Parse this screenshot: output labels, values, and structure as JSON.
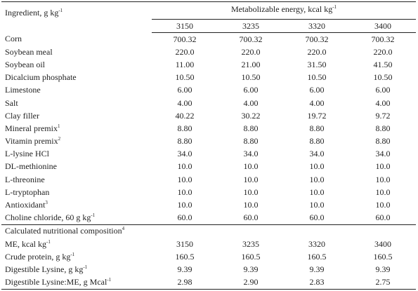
{
  "header": {
    "ingredient_label": "Ingredient, g kg",
    "ingredient_sup": "-1",
    "me_label": "Metabolizable energy, kcal kg",
    "me_sup": "-1",
    "levels": [
      "3150",
      "3235",
      "3320",
      "3400"
    ]
  },
  "ingredients": [
    {
      "name": "Corn",
      "sup": "",
      "values": [
        "700.32",
        "700.32",
        "700.32",
        "700.32"
      ]
    },
    {
      "name": "Soybean meal",
      "sup": "",
      "values": [
        "220.0",
        "220.0",
        "220.0",
        "220.0"
      ]
    },
    {
      "name": "Soybean oil",
      "sup": "",
      "values": [
        "11.00",
        "21.00",
        "31.50",
        "41.50"
      ]
    },
    {
      "name": "Dicalcium phosphate",
      "sup": "",
      "values": [
        "10.50",
        "10.50",
        "10.50",
        "10.50"
      ]
    },
    {
      "name": "Limestone",
      "sup": "",
      "values": [
        "6.00",
        "6.00",
        "6.00",
        "6.00"
      ]
    },
    {
      "name": "Salt",
      "sup": "",
      "values": [
        "4.00",
        "4.00",
        "4.00",
        "4.00"
      ]
    },
    {
      "name": "Clay filler",
      "sup": "",
      "values": [
        "40.22",
        "30.22",
        "19.72",
        "9.72"
      ]
    },
    {
      "name": "Mineral premix",
      "sup": "1",
      "values": [
        "8.80",
        "8.80",
        "8.80",
        "8.80"
      ]
    },
    {
      "name": "Vitamin premix",
      "sup": "2",
      "values": [
        "8.80",
        "8.80",
        "8.80",
        "8.80"
      ]
    },
    {
      "name": "L-lysine HCl",
      "sup": "",
      "values": [
        "34.0",
        "34.0",
        "34.0",
        "34.0"
      ]
    },
    {
      "name": "DL-methionine",
      "sup": "",
      "values": [
        "10.0",
        "10.0",
        "10.0",
        "10.0"
      ]
    },
    {
      "name": "L-threonine",
      "sup": "",
      "values": [
        "10.0",
        "10.0",
        "10.0",
        "10.0"
      ]
    },
    {
      "name": "L-tryptophan",
      "sup": "",
      "values": [
        "10.0",
        "10.0",
        "10.0",
        "10.0"
      ]
    },
    {
      "name": "Antioxidant",
      "sup": "3",
      "values": [
        "10.0",
        "10.0",
        "10.0",
        "10.0"
      ]
    },
    {
      "name": "Choline chloride, 60 g kg",
      "sup": "-1",
      "values": [
        "60.0",
        "60.0",
        "60.0",
        "60.0"
      ]
    }
  ],
  "composition": {
    "title": "Calculated nutritional composition",
    "title_sup": "4",
    "rows": [
      {
        "name": "ME, kcal kg",
        "sup": "-1",
        "values": [
          "3150",
          "3235",
          "3320",
          "3400"
        ]
      },
      {
        "name": "Crude protein, g kg",
        "sup": "-1",
        "values": [
          "160.5",
          "160.5",
          "160.5",
          "160.5"
        ]
      },
      {
        "name": "Digestible Lysine, g kg",
        "sup": "-1",
        "values": [
          "9.39",
          "9.39",
          "9.39",
          "9.39"
        ]
      },
      {
        "name": "Digestible Lysine:ME, g Mcal",
        "sup": "-1",
        "values": [
          "2.98",
          "2.90",
          "2.83",
          "2.75"
        ]
      }
    ]
  }
}
